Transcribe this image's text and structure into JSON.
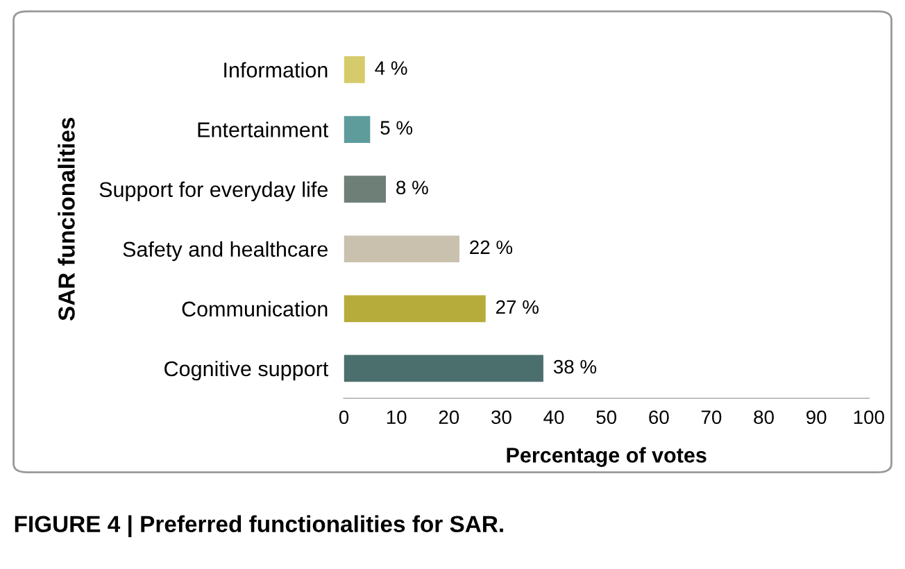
{
  "chart_data": {
    "type": "bar",
    "orientation": "horizontal",
    "categories": [
      "Information",
      "Entertainment",
      "Support for everyday life",
      "Safety and healthcare",
      "Communication",
      "Cognitive support"
    ],
    "values": [
      4,
      5,
      8,
      22,
      27,
      38
    ],
    "colors": [
      "#d6cb6c",
      "#5e9c9c",
      "#6e7f77",
      "#c9c0ad",
      "#b6ac3c",
      "#4b6f6c"
    ],
    "value_labels": [
      "4 %",
      "5 %",
      "8 %",
      "22 %",
      "27 %",
      "38 %"
    ],
    "xlim": [
      0,
      100
    ],
    "xticks": [
      0,
      10,
      20,
      30,
      40,
      50,
      60,
      70,
      80,
      90,
      100
    ],
    "xlabel": "Percentage of votes",
    "ylabel": "SAR funcionalities",
    "grid": false,
    "legend": false,
    "annotations": [
      "FIGURE 4 | Preferred functionalities for SAR."
    ]
  }
}
